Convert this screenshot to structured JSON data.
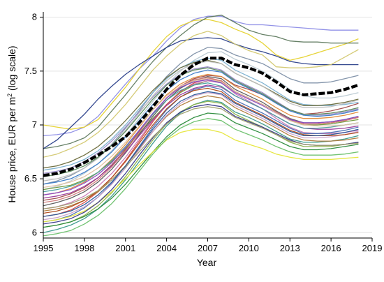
{
  "chart_data": {
    "type": "line",
    "xlabel": "Year",
    "ylabel_main": "House price, EUR per m",
    "ylabel_sup": "2",
    "ylabel_suffix": " (log scale)",
    "xlim": [
      1995,
      2019
    ],
    "ylim": [
      5.95,
      8.05
    ],
    "x_ticks": [
      1995,
      1998,
      2001,
      2004,
      2007,
      2010,
      2013,
      2016,
      2019
    ],
    "y_ticks": [
      6,
      6.5,
      7,
      7.5,
      8
    ],
    "y_tick_labels": [
      "6",
      "6.5",
      "7",
      "7.5",
      "8"
    ],
    "grid": "horizontal",
    "years": [
      1995,
      1996,
      1997,
      1998,
      1999,
      2000,
      2001,
      2002,
      2003,
      2004,
      2005,
      2006,
      2007,
      2008,
      2009,
      2010,
      2011,
      2012,
      2013,
      2014,
      2015,
      2016,
      2017,
      2018
    ],
    "highlight_series": {
      "color": "#000000",
      "style": "dashed-thick",
      "values": [
        6.53,
        6.55,
        6.59,
        6.65,
        6.72,
        6.8,
        6.89,
        7.02,
        7.17,
        7.33,
        7.46,
        7.56,
        7.62,
        7.62,
        7.56,
        7.53,
        7.48,
        7.4,
        7.31,
        7.28,
        7.29,
        7.3,
        7.33,
        7.37
      ]
    },
    "series": [
      {
        "color": "#8c8ce6",
        "values": [
          6.9,
          6.91,
          6.93,
          6.98,
          7.08,
          7.23,
          7.38,
          7.52,
          7.64,
          7.78,
          7.9,
          7.98,
          8.01,
          8.01,
          7.96,
          7.93,
          7.93,
          7.92,
          7.91,
          7.9,
          7.89,
          7.88,
          7.88,
          7.88
        ]
      },
      {
        "color": "#e6d22e",
        "values": [
          7.0,
          6.98,
          6.96,
          6.98,
          7.05,
          7.2,
          7.35,
          7.52,
          7.68,
          7.82,
          7.92,
          7.97,
          7.98,
          7.95,
          7.89,
          7.84,
          7.76,
          7.65,
          7.6,
          7.63,
          7.67,
          7.71,
          7.75,
          7.8
        ]
      },
      {
        "color": "#5f7a5f",
        "values": [
          6.78,
          6.8,
          6.83,
          6.88,
          6.98,
          7.13,
          7.28,
          7.44,
          7.59,
          7.72,
          7.83,
          7.93,
          8.0,
          8.02,
          7.95,
          7.88,
          7.84,
          7.82,
          7.78,
          7.77,
          7.77,
          7.76,
          7.76,
          7.76
        ]
      },
      {
        "color": "#2a3f8a",
        "values": [
          6.78,
          6.86,
          6.98,
          7.1,
          7.24,
          7.36,
          7.47,
          7.56,
          7.64,
          7.72,
          7.78,
          7.8,
          7.81,
          7.8,
          7.75,
          7.71,
          7.68,
          7.64,
          7.59,
          7.57,
          7.56,
          7.56,
          7.56,
          7.56
        ]
      },
      {
        "color": "#d3c870",
        "values": [
          6.7,
          6.73,
          6.78,
          6.84,
          6.93,
          7.05,
          7.19,
          7.35,
          7.51,
          7.64,
          7.75,
          7.83,
          7.87,
          7.83,
          7.75,
          7.69,
          7.65,
          7.54,
          7.53,
          7.53,
          7.54,
          7.56,
          7.63,
          7.7
        ]
      },
      {
        "color": "#7d8fa6",
        "values": [
          6.45,
          6.48,
          6.53,
          6.6,
          6.7,
          6.82,
          6.97,
          7.13,
          7.3,
          7.45,
          7.57,
          7.66,
          7.72,
          7.71,
          7.65,
          7.61,
          7.57,
          7.5,
          7.43,
          7.39,
          7.39,
          7.4,
          7.43,
          7.46
        ]
      },
      {
        "color": "#b9c9d2",
        "values": [
          6.4,
          6.43,
          6.48,
          6.55,
          6.64,
          6.76,
          6.9,
          7.06,
          7.22,
          7.37,
          7.5,
          7.6,
          7.67,
          7.68,
          7.61,
          7.56,
          7.5,
          7.42,
          7.33,
          7.27,
          7.25,
          7.25,
          7.27,
          7.3
        ]
      },
      {
        "color": "#a04a4a",
        "values": [
          6.3,
          6.32,
          6.36,
          6.42,
          6.51,
          6.63,
          6.77,
          6.94,
          7.1,
          7.25,
          7.36,
          7.43,
          7.46,
          7.45,
          7.37,
          7.33,
          7.28,
          7.21,
          7.14,
          7.1,
          7.11,
          7.13,
          7.16,
          7.2
        ]
      },
      {
        "color": "#6f9a3a",
        "values": [
          6.4,
          6.42,
          6.44,
          6.49,
          6.56,
          6.66,
          6.78,
          6.92,
          7.06,
          7.19,
          7.3,
          7.37,
          7.41,
          7.4,
          7.31,
          7.25,
          7.19,
          7.12,
          7.04,
          7.0,
          7.0,
          7.01,
          7.03,
          7.05
        ]
      },
      {
        "color": "#c77ab5",
        "values": [
          6.22,
          6.24,
          6.28,
          6.34,
          6.43,
          6.55,
          6.7,
          6.87,
          7.04,
          7.19,
          7.31,
          7.38,
          7.41,
          7.39,
          7.29,
          7.22,
          7.15,
          7.06,
          6.98,
          6.93,
          6.92,
          6.92,
          6.93,
          6.95
        ]
      },
      {
        "color": "#4a6fb3",
        "values": [
          6.1,
          6.12,
          6.16,
          6.23,
          6.33,
          6.46,
          6.62,
          6.8,
          6.98,
          7.14,
          7.26,
          7.33,
          7.36,
          7.33,
          7.23,
          7.17,
          7.11,
          7.04,
          6.97,
          6.92,
          6.92,
          6.93,
          6.95,
          6.98
        ]
      },
      {
        "color": "#e08a3a",
        "values": [
          6.35,
          6.37,
          6.41,
          6.47,
          6.56,
          6.68,
          6.82,
          6.98,
          7.14,
          7.28,
          7.38,
          7.44,
          7.47,
          7.45,
          7.36,
          7.3,
          7.24,
          7.16,
          7.09,
          7.06,
          7.06,
          7.07,
          7.09,
          7.12
        ]
      },
      {
        "color": "#3a9a8a",
        "values": [
          6.0,
          6.03,
          6.07,
          6.13,
          6.22,
          6.34,
          6.49,
          6.66,
          6.83,
          6.99,
          7.11,
          7.19,
          7.23,
          7.21,
          7.12,
          7.07,
          7.01,
          6.94,
          6.87,
          6.84,
          6.84,
          6.85,
          6.87,
          6.9
        ]
      },
      {
        "color": "#9a8ac8",
        "values": [
          6.55,
          6.57,
          6.6,
          6.66,
          6.74,
          6.85,
          6.98,
          7.12,
          7.26,
          7.38,
          7.47,
          7.52,
          7.54,
          7.51,
          7.42,
          7.36,
          7.3,
          7.22,
          7.14,
          7.1,
          7.09,
          7.1,
          7.12,
          7.15
        ]
      },
      {
        "color": "#d44a4a",
        "values": [
          6.15,
          6.17,
          6.21,
          6.28,
          6.38,
          6.51,
          6.67,
          6.85,
          7.03,
          7.19,
          7.31,
          7.39,
          7.43,
          7.41,
          7.31,
          7.25,
          7.19,
          7.12,
          7.05,
          7.01,
          7.01,
          7.02,
          7.04,
          7.07
        ]
      },
      {
        "color": "#8ab04a",
        "values": [
          6.05,
          6.07,
          6.1,
          6.16,
          6.25,
          6.37,
          6.52,
          6.69,
          6.86,
          7.01,
          7.12,
          7.19,
          7.22,
          7.2,
          7.1,
          7.04,
          6.98,
          6.91,
          6.84,
          6.8,
          6.8,
          6.8,
          6.82,
          6.84
        ]
      },
      {
        "color": "#5a5a5a",
        "values": [
          6.25,
          6.28,
          6.32,
          6.38,
          6.47,
          6.59,
          6.74,
          6.91,
          7.08,
          7.23,
          7.34,
          7.41,
          7.45,
          7.43,
          7.33,
          7.27,
          7.21,
          7.13,
          7.06,
          7.02,
          7.02,
          7.03,
          7.05,
          7.08
        ]
      },
      {
        "color": "#b07a3a",
        "values": [
          6.2,
          6.22,
          6.25,
          6.3,
          6.38,
          6.49,
          6.62,
          6.78,
          6.94,
          7.08,
          7.18,
          7.24,
          7.27,
          7.25,
          7.16,
          7.1,
          7.04,
          6.97,
          6.9,
          6.86,
          6.85,
          6.85,
          6.86,
          6.88
        ]
      },
      {
        "color": "#3a7ac8",
        "values": [
          6.45,
          6.47,
          6.5,
          6.56,
          6.64,
          6.75,
          6.89,
          7.04,
          7.19,
          7.32,
          7.42,
          7.48,
          7.51,
          7.49,
          7.4,
          7.34,
          7.28,
          7.2,
          7.13,
          7.09,
          7.08,
          7.09,
          7.11,
          7.14
        ]
      },
      {
        "color": "#c8a0c8",
        "values": [
          6.12,
          6.14,
          6.18,
          6.24,
          6.33,
          6.45,
          6.6,
          6.77,
          6.94,
          7.09,
          7.2,
          7.27,
          7.3,
          7.28,
          7.18,
          7.12,
          7.06,
          6.99,
          6.92,
          6.88,
          6.88,
          6.89,
          6.91,
          6.94
        ]
      },
      {
        "color": "#2a8a3a",
        "values": [
          6.05,
          6.07,
          6.1,
          6.15,
          6.22,
          6.32,
          6.45,
          6.6,
          6.75,
          6.89,
          7.0,
          7.07,
          7.11,
          7.1,
          7.02,
          6.97,
          6.92,
          6.86,
          6.8,
          6.77,
          6.77,
          6.78,
          6.8,
          6.82
        ]
      },
      {
        "color": "#e6e63a",
        "values": [
          6.1,
          6.12,
          6.15,
          6.2,
          6.28,
          6.38,
          6.5,
          6.63,
          6.75,
          6.86,
          6.93,
          6.96,
          6.96,
          6.93,
          6.86,
          6.82,
          6.78,
          6.73,
          6.7,
          6.68,
          6.68,
          6.68,
          6.69,
          6.7
        ]
      },
      {
        "color": "#9a3a9a",
        "values": [
          6.32,
          6.34,
          6.37,
          6.43,
          6.51,
          6.62,
          6.75,
          6.9,
          7.05,
          7.18,
          7.28,
          7.34,
          7.37,
          7.35,
          7.27,
          7.21,
          7.15,
          7.08,
          7.01,
          6.97,
          6.96,
          6.96,
          6.97,
          6.99
        ]
      },
      {
        "color": "#7ab0d0",
        "values": [
          6.58,
          6.6,
          6.63,
          6.68,
          6.76,
          6.87,
          7.0,
          7.15,
          7.3,
          7.43,
          7.53,
          7.59,
          7.62,
          7.6,
          7.51,
          7.45,
          7.39,
          7.31,
          7.23,
          7.19,
          7.18,
          7.18,
          7.19,
          7.21
        ]
      },
      {
        "color": "#6a6a3a",
        "values": [
          6.6,
          6.62,
          6.66,
          6.72,
          6.8,
          6.91,
          7.04,
          7.18,
          7.32,
          7.44,
          7.53,
          7.58,
          7.6,
          7.57,
          7.48,
          7.42,
          7.36,
          7.29,
          7.22,
          7.18,
          7.18,
          7.19,
          7.21,
          7.24
        ]
      },
      {
        "color": "#3a3a8a",
        "values": [
          6.08,
          6.1,
          6.13,
          6.19,
          6.28,
          6.4,
          6.55,
          6.72,
          6.88,
          7.02,
          7.12,
          7.17,
          7.19,
          7.17,
          7.08,
          7.03,
          6.98,
          6.92,
          6.86,
          6.82,
          6.81,
          6.81,
          6.82,
          6.84
        ]
      },
      {
        "color": "#d07a7a",
        "values": [
          6.28,
          6.3,
          6.34,
          6.4,
          6.49,
          6.61,
          6.76,
          6.93,
          7.1,
          7.25,
          7.36,
          7.42,
          7.44,
          7.41,
          7.31,
          7.25,
          7.19,
          7.12,
          7.05,
          7.01,
          7.01,
          7.02,
          7.04,
          7.07
        ]
      },
      {
        "color": "#4aa0a0",
        "values": [
          6.38,
          6.4,
          6.43,
          6.48,
          6.56,
          6.67,
          6.8,
          6.95,
          7.1,
          7.23,
          7.32,
          7.37,
          7.39,
          7.36,
          7.27,
          7.21,
          7.15,
          7.08,
          7.01,
          6.97,
          6.97,
          6.98,
          7.0,
          7.02
        ]
      },
      {
        "color": "#c0c0c0",
        "values": [
          6.48,
          6.5,
          6.54,
          6.6,
          6.69,
          6.81,
          6.95,
          7.11,
          7.27,
          7.41,
          7.51,
          7.57,
          7.59,
          7.57,
          7.48,
          7.42,
          7.36,
          7.28,
          7.2,
          7.16,
          7.16,
          7.17,
          7.2,
          7.23
        ]
      },
      {
        "color": "#b04a1a",
        "values": [
          6.18,
          6.2,
          6.24,
          6.3,
          6.39,
          6.51,
          6.66,
          6.83,
          7.0,
          7.15,
          7.26,
          7.32,
          7.34,
          7.31,
          7.21,
          7.15,
          7.09,
          7.02,
          6.95,
          6.91,
          6.9,
          6.9,
          6.91,
          6.93
        ]
      },
      {
        "color": "#6ac06a",
        "values": [
          5.97,
          5.99,
          6.02,
          6.08,
          6.16,
          6.27,
          6.41,
          6.57,
          6.73,
          6.87,
          6.97,
          7.03,
          7.06,
          7.04,
          6.96,
          6.91,
          6.86,
          6.8,
          6.75,
          6.72,
          6.72,
          6.72,
          6.73,
          6.75
        ]
      },
      {
        "color": "#8a4ac8",
        "values": [
          6.35,
          6.37,
          6.4,
          6.46,
          6.54,
          6.65,
          6.79,
          6.95,
          7.11,
          7.25,
          7.35,
          7.4,
          7.42,
          7.39,
          7.3,
          7.24,
          7.18,
          7.11,
          7.05,
          7.02,
          7.02,
          7.03,
          7.05,
          7.08
        ]
      },
      {
        "color": "#a0a070",
        "values": [
          6.22,
          6.24,
          6.27,
          6.32,
          6.39,
          6.49,
          6.61,
          6.75,
          6.89,
          7.01,
          7.1,
          7.15,
          7.17,
          7.15,
          7.07,
          7.02,
          6.97,
          6.91,
          6.85,
          6.82,
          6.81,
          6.81,
          6.82,
          6.83
        ]
      },
      {
        "color": "#2a5a9a",
        "values": [
          6.15,
          6.17,
          6.2,
          6.26,
          6.35,
          6.47,
          6.62,
          6.79,
          6.96,
          7.11,
          7.22,
          7.28,
          7.31,
          7.29,
          7.2,
          7.14,
          7.08,
          7.01,
          6.94,
          6.9,
          6.9,
          6.91,
          6.93,
          6.96
        ]
      },
      {
        "color": "#e0c0a0",
        "values": [
          6.42,
          6.44,
          6.47,
          6.52,
          6.6,
          6.71,
          6.84,
          6.99,
          7.14,
          7.27,
          7.36,
          7.41,
          7.43,
          7.4,
          7.31,
          7.25,
          7.19,
          7.11,
          7.04,
          7.0,
          6.99,
          6.99,
          7.0,
          7.02
        ]
      },
      {
        "color": "#5a8a5a",
        "values": [
          6.52,
          6.54,
          6.57,
          6.62,
          6.7,
          6.81,
          6.94,
          7.09,
          7.24,
          7.37,
          7.46,
          7.51,
          7.53,
          7.5,
          7.41,
          7.35,
          7.29,
          7.21,
          7.14,
          7.1,
          7.1,
          7.11,
          7.13,
          7.16
        ]
      }
    ]
  }
}
